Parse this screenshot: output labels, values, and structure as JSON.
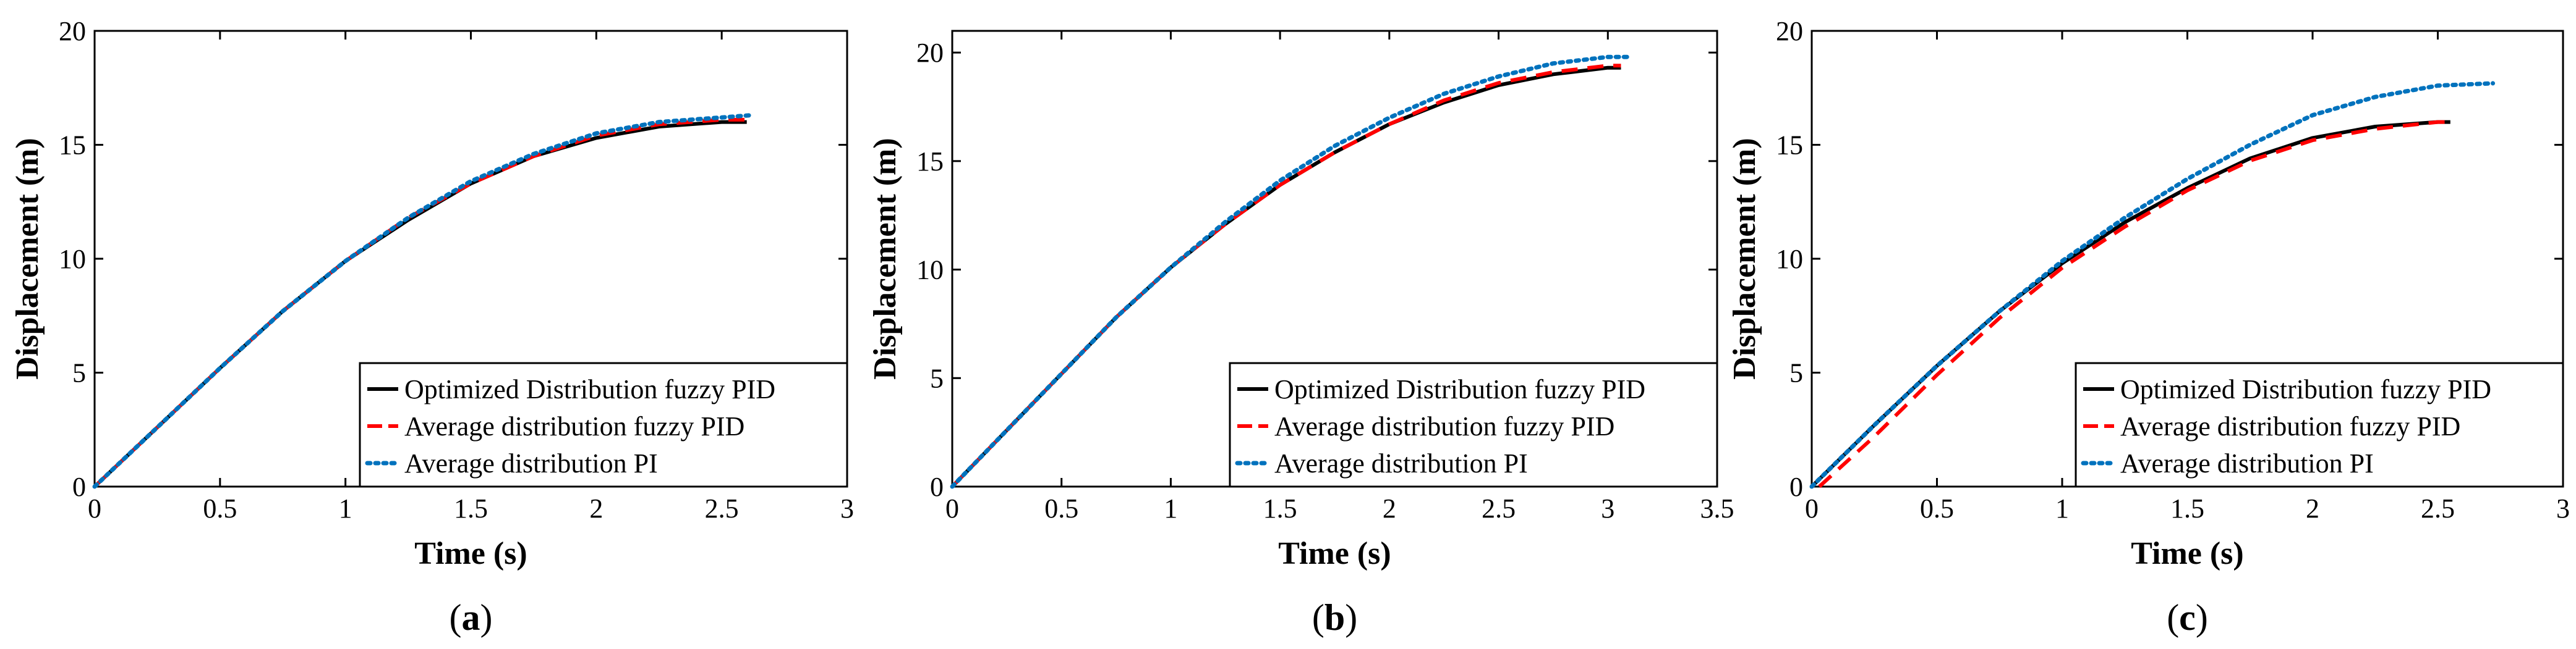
{
  "figure": {
    "colors": {
      "optimized": "#000000",
      "avg_fuzzy": "#ff0000",
      "avg_pi": "#0072bd"
    },
    "legend_location": "lower-right"
  },
  "chart_data": [
    {
      "type": "line",
      "panel_label": "a",
      "xlabel": "Time  (s)",
      "ylabel": "Displacement  (m)",
      "xlim": [
        0,
        3
      ],
      "ylim": [
        0,
        20
      ],
      "xticks": [
        0,
        0.5,
        1,
        1.5,
        2,
        2.5,
        3
      ],
      "xtick_labels": [
        "0",
        "0.5",
        "1",
        "1.5",
        "2",
        "2.5",
        "3"
      ],
      "yticks": [
        0,
        5,
        10,
        15,
        20
      ],
      "ytick_labels": [
        "0",
        "5",
        "10",
        "15",
        "20"
      ],
      "series": [
        {
          "name": "Optimized Distribution fuzzy PID",
          "style": "solid",
          "x": [
            0,
            0.25,
            0.5,
            0.75,
            1.0,
            1.25,
            1.5,
            1.75,
            2.0,
            2.25,
            2.5,
            2.6
          ],
          "y": [
            0,
            2.6,
            5.2,
            7.7,
            9.9,
            11.7,
            13.3,
            14.5,
            15.3,
            15.8,
            16.0,
            16.0
          ]
        },
        {
          "name": "Average distribution fuzzy PID",
          "style": "dashed",
          "x": [
            0,
            0.25,
            0.5,
            0.75,
            1.0,
            1.25,
            1.5,
            1.75,
            2.0,
            2.25,
            2.5,
            2.6
          ],
          "y": [
            0,
            2.6,
            5.2,
            7.7,
            9.9,
            11.8,
            13.3,
            14.5,
            15.4,
            15.9,
            16.1,
            16.1
          ]
        },
        {
          "name": "Average distribution PI",
          "style": "dotted",
          "x": [
            0,
            0.25,
            0.5,
            0.75,
            1.0,
            1.25,
            1.5,
            1.75,
            2.0,
            2.25,
            2.5,
            2.62
          ],
          "y": [
            0,
            2.6,
            5.2,
            7.7,
            9.9,
            11.8,
            13.4,
            14.6,
            15.5,
            16.0,
            16.2,
            16.3
          ]
        }
      ]
    },
    {
      "type": "line",
      "panel_label": "b",
      "xlabel": "Time  (s)",
      "ylabel": "Displacement  (m)",
      "xlim": [
        0,
        3.5
      ],
      "ylim": [
        0,
        21
      ],
      "xticks": [
        0,
        0.5,
        1,
        1.5,
        2,
        2.5,
        3,
        3.5
      ],
      "xtick_labels": [
        "0",
        "0.5",
        "1",
        "1.5",
        "2",
        "2.5",
        "3",
        "3.5"
      ],
      "yticks": [
        0,
        5,
        10,
        15,
        20
      ],
      "ytick_labels": [
        "0",
        "5",
        "10",
        "15",
        "20"
      ],
      "series": [
        {
          "name": "Optimized Distribution fuzzy PID",
          "style": "solid",
          "x": [
            0,
            0.25,
            0.5,
            0.75,
            1.0,
            1.25,
            1.5,
            1.75,
            2.0,
            2.25,
            2.5,
            2.75,
            3.0,
            3.06
          ],
          "y": [
            0,
            2.6,
            5.2,
            7.8,
            10.1,
            12.1,
            13.9,
            15.4,
            16.7,
            17.7,
            18.5,
            19.0,
            19.3,
            19.3
          ]
        },
        {
          "name": "Average distribution fuzzy PID",
          "style": "dashed",
          "x": [
            0,
            0.25,
            0.5,
            0.75,
            1.0,
            1.25,
            1.5,
            1.75,
            2.0,
            2.25,
            2.5,
            2.75,
            3.0,
            3.06
          ],
          "y": [
            0,
            2.6,
            5.2,
            7.8,
            10.1,
            12.1,
            13.9,
            15.4,
            16.7,
            17.8,
            18.6,
            19.1,
            19.4,
            19.4
          ]
        },
        {
          "name": "Average distribution PI",
          "style": "dotted",
          "x": [
            0,
            0.25,
            0.5,
            0.75,
            1.0,
            1.25,
            1.5,
            1.75,
            2.0,
            2.25,
            2.5,
            2.75,
            3.0,
            3.1
          ],
          "y": [
            0,
            2.6,
            5.2,
            7.8,
            10.1,
            12.2,
            14.1,
            15.7,
            17.0,
            18.1,
            18.9,
            19.5,
            19.8,
            19.8
          ]
        }
      ]
    },
    {
      "type": "line",
      "panel_label": "c",
      "xlabel": "Time  (s)",
      "ylabel": "Displacement  (m)",
      "xlim": [
        0,
        3
      ],
      "ylim": [
        0,
        20
      ],
      "xticks": [
        0,
        0.5,
        1,
        1.5,
        2,
        2.5,
        3
      ],
      "xtick_labels": [
        "0",
        "0.5",
        "1",
        "1.5",
        "2",
        "2.5",
        "3"
      ],
      "yticks": [
        0,
        5,
        10,
        15,
        20
      ],
      "ytick_labels": [
        "0",
        "5",
        "10",
        "15",
        "20"
      ],
      "series": [
        {
          "name": "Optimized Distribution fuzzy PID",
          "style": "solid",
          "x": [
            0,
            0.25,
            0.5,
            0.75,
            1.0,
            1.25,
            1.5,
            1.75,
            2.0,
            2.25,
            2.5,
            2.55
          ],
          "y": [
            0,
            2.7,
            5.3,
            7.7,
            9.8,
            11.6,
            13.1,
            14.4,
            15.3,
            15.8,
            16.0,
            16.0
          ]
        },
        {
          "name": "Average distribution fuzzy PID",
          "style": "dashed",
          "x": [
            0.03,
            0.25,
            0.5,
            0.75,
            1.0,
            1.25,
            1.5,
            1.75,
            2.0,
            2.25,
            2.5,
            2.55
          ],
          "y": [
            0,
            2.2,
            4.9,
            7.4,
            9.6,
            11.4,
            13.0,
            14.3,
            15.2,
            15.7,
            16.0,
            16.0
          ]
        },
        {
          "name": "Average distribution PI",
          "style": "dotted",
          "x": [
            0,
            0.25,
            0.5,
            0.75,
            1.0,
            1.25,
            1.5,
            1.75,
            2.0,
            2.25,
            2.5,
            2.72
          ],
          "y": [
            0,
            2.7,
            5.3,
            7.7,
            9.9,
            11.8,
            13.5,
            15.0,
            16.3,
            17.1,
            17.6,
            17.7
          ]
        }
      ]
    }
  ]
}
